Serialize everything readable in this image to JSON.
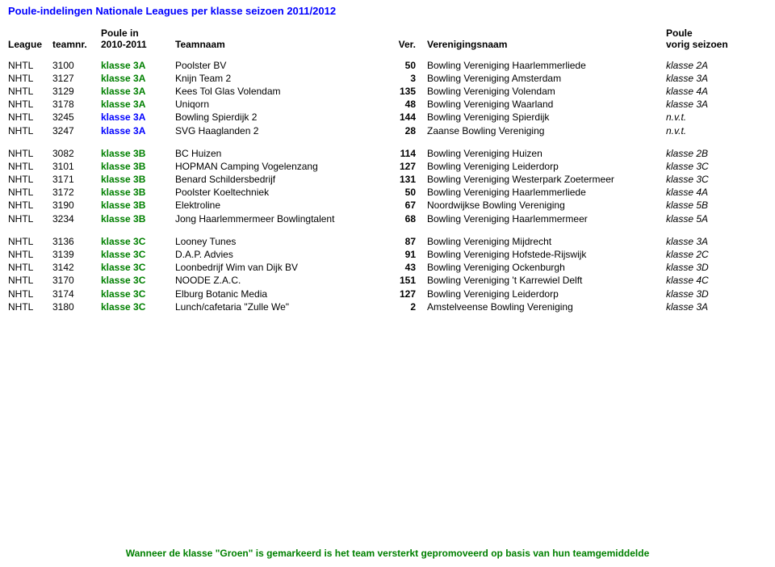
{
  "title": "Poule-indelingen Nationale Leagues per klasse seizoen 2011/2012",
  "header": {
    "league": "League",
    "teamnr": "teamnr.",
    "pouleinTop": "Poule in",
    "pouleinBottom": "2010-2011",
    "teamnaam": "Teamnaam",
    "ver": "Ver.",
    "verenigingsnaam": "Verenigingsnaam",
    "pouleTop": "Poule",
    "pouleBottom": "vorig seizoen"
  },
  "klasse_colors": {
    "green": "#008000",
    "blue": "#0000ff"
  },
  "sections": [
    {
      "rows": [
        {
          "league": "NHTL",
          "teamnr": "3100",
          "klasse": "klasse 3A",
          "klasseColor": "green",
          "teamnaam": "Poolster BV",
          "num": "50",
          "vernaam": "Bowling Vereniging Haarlemmerliede",
          "vorig": "klasse 2A"
        },
        {
          "league": "NHTL",
          "teamnr": "3127",
          "klasse": "klasse 3A",
          "klasseColor": "green",
          "teamnaam": "Knijn Team 2",
          "num": "3",
          "vernaam": "Bowling Vereniging Amsterdam",
          "vorig": "klasse 3A"
        },
        {
          "league": "NHTL",
          "teamnr": "3129",
          "klasse": "klasse 3A",
          "klasseColor": "green",
          "teamnaam": "Kees Tol Glas Volendam",
          "num": "135",
          "vernaam": "Bowling Vereniging Volendam",
          "vorig": "klasse 4A"
        },
        {
          "league": "NHTL",
          "teamnr": "3178",
          "klasse": "klasse 3A",
          "klasseColor": "green",
          "teamnaam": "Uniqorn",
          "num": "48",
          "vernaam": "Bowling Vereniging Waarland",
          "vorig": "klasse 3A"
        },
        {
          "league": "NHTL",
          "teamnr": "3245",
          "klasse": "klasse 3A",
          "klasseColor": "blue",
          "teamnaam": "Bowling Spierdijk 2",
          "num": "144",
          "vernaam": "Bowling Vereniging Spierdijk",
          "vorig": "n.v.t."
        },
        {
          "league": "NHTL",
          "teamnr": "3247",
          "klasse": "klasse 3A",
          "klasseColor": "blue",
          "teamnaam": "SVG Haaglanden 2",
          "num": "28",
          "vernaam": "Zaanse Bowling Vereniging",
          "vorig": "n.v.t."
        }
      ]
    },
    {
      "rows": [
        {
          "league": "NHTL",
          "teamnr": "3082",
          "klasse": "klasse 3B",
          "klasseColor": "green",
          "teamnaam": "BC Huizen",
          "num": "114",
          "vernaam": "Bowling Vereniging Huizen",
          "vorig": "klasse 2B"
        },
        {
          "league": "NHTL",
          "teamnr": "3101",
          "klasse": "klasse 3B",
          "klasseColor": "green",
          "teamnaam": "HOPMAN Camping Vogelenzang",
          "num": "127",
          "vernaam": "Bowling Vereniging Leiderdorp",
          "vorig": "klasse 3C"
        },
        {
          "league": "NHTL",
          "teamnr": "3171",
          "klasse": "klasse 3B",
          "klasseColor": "green",
          "teamnaam": "Benard Schildersbedrijf",
          "num": "131",
          "vernaam": "Bowling Vereniging Westerpark Zoetermeer",
          "vorig": "klasse 3C"
        },
        {
          "league": "NHTL",
          "teamnr": "3172",
          "klasse": "klasse 3B",
          "klasseColor": "green",
          "teamnaam": "Poolster Koeltechniek",
          "num": "50",
          "vernaam": "Bowling Vereniging Haarlemmerliede",
          "vorig": "klasse 4A"
        },
        {
          "league": "NHTL",
          "teamnr": "3190",
          "klasse": "klasse 3B",
          "klasseColor": "green",
          "teamnaam": "Elektroline",
          "num": "67",
          "vernaam": "Noordwijkse Bowling Vereniging",
          "vorig": "klasse 5B"
        },
        {
          "league": "NHTL",
          "teamnr": "3234",
          "klasse": "klasse 3B",
          "klasseColor": "green",
          "teamnaam": "Jong Haarlemmermeer Bowlingtalent",
          "num": "68",
          "vernaam": "Bowling Vereniging Haarlemmermeer",
          "vorig": "klasse 5A"
        }
      ]
    },
    {
      "rows": [
        {
          "league": "NHTL",
          "teamnr": "3136",
          "klasse": "klasse 3C",
          "klasseColor": "green",
          "teamnaam": "Looney Tunes",
          "num": "87",
          "vernaam": "Bowling Vereniging Mijdrecht",
          "vorig": "klasse 3A"
        },
        {
          "league": "NHTL",
          "teamnr": "3139",
          "klasse": "klasse 3C",
          "klasseColor": "green",
          "teamnaam": "D.A.P. Advies",
          "num": "91",
          "vernaam": "Bowling Vereniging Hofstede-Rijswijk",
          "vorig": "klasse 2C"
        },
        {
          "league": "NHTL",
          "teamnr": "3142",
          "klasse": "klasse 3C",
          "klasseColor": "green",
          "teamnaam": "Loonbedrijf Wim van Dijk BV",
          "num": "43",
          "vernaam": "Bowling Vereniging Ockenburgh",
          "vorig": "klasse 3D"
        },
        {
          "league": "NHTL",
          "teamnr": "3170",
          "klasse": "klasse 3C",
          "klasseColor": "green",
          "teamnaam": "NOODE Z.A.C.",
          "num": "151",
          "vernaam": "Bowling Vereniging 't Karrewiel Delft",
          "vorig": "klasse 4C"
        },
        {
          "league": "NHTL",
          "teamnr": "3174",
          "klasse": "klasse 3C",
          "klasseColor": "green",
          "teamnaam": "Elburg Botanic Media",
          "num": "127",
          "vernaam": "Bowling Vereniging Leiderdorp",
          "vorig": "klasse 3D"
        },
        {
          "league": "NHTL",
          "teamnr": "3180",
          "klasse": "klasse 3C",
          "klasseColor": "green",
          "teamnaam": "Lunch/cafetaria \"Zulle We\"",
          "num": "2",
          "vernaam": "Amstelveense Bowling Vereniging",
          "vorig": "klasse 3A"
        }
      ]
    }
  ],
  "footer": "Wanneer de klasse \"Groen\" is gemarkeerd is het team versterkt gepromoveerd op basis van hun teamgemiddelde"
}
